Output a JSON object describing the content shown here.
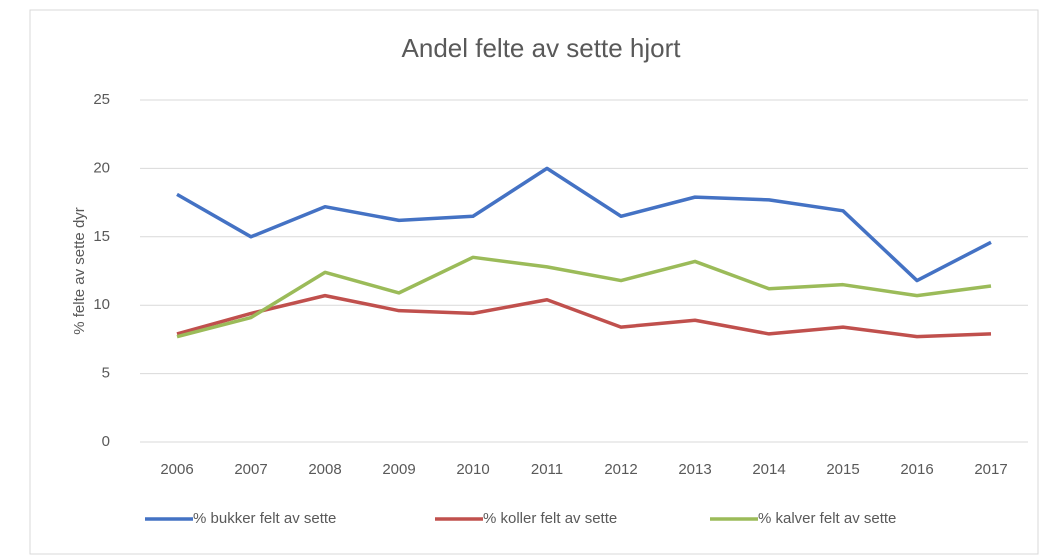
{
  "chart_data": {
    "type": "line",
    "title": "Andel felte av sette hjort",
    "y_label": "% felte av sette dyr",
    "categories": [
      "2006",
      "2007",
      "2008",
      "2009",
      "2010",
      "2011",
      "2012",
      "2013",
      "2014",
      "2015",
      "2016",
      "2017"
    ],
    "series": [
      {
        "name": "% bukker felt av sette",
        "color": "#4472c4",
        "values": [
          18.1,
          15,
          17.2,
          16.2,
          16.5,
          20,
          16.5,
          17.9,
          17.7,
          16.9,
          11.8,
          14.6
        ]
      },
      {
        "name": "% koller felt av sette",
        "color": "#c0504d",
        "values": [
          7.9,
          9.4,
          10.7,
          9.6,
          9.4,
          10.4,
          8.4,
          8.9,
          7.9,
          8.4,
          7.7,
          7.9
        ]
      },
      {
        "name": "% kalver felt av sette",
        "color": "#9bbb59",
        "values": [
          7.7,
          9.1,
          12.4,
          10.9,
          13.5,
          12.8,
          11.8,
          13.2,
          11.2,
          11.5,
          10.7,
          11.4
        ]
      }
    ],
    "ylim": [
      0,
      25
    ],
    "yticks": [
      0,
      5,
      10,
      15,
      20,
      25
    ],
    "grid": true,
    "legend": "bottom"
  }
}
